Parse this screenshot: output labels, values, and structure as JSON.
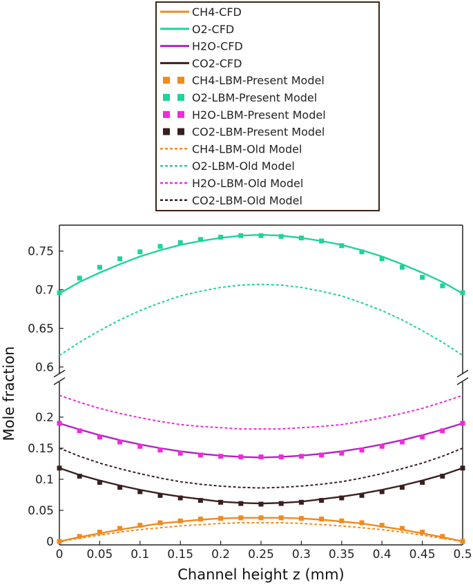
{
  "chart_data": {
    "type": "line",
    "title": "",
    "xlabel": "Channel height z (mm)",
    "ylabel": "Mole fraction",
    "xlim": [
      0,
      0.5
    ],
    "ylim_upper_panel": [
      0.595,
      0.78
    ],
    "ylim_lower_panel": [
      0,
      0.24
    ],
    "axis_break": "between 0.6 and 0.2 on the y axis",
    "x_ticks": [
      "0",
      "0.05",
      "0.1",
      "0.15",
      "0.2",
      "0.25",
      "0.3",
      "0.35",
      "0.4",
      "0.45",
      "0.5"
    ],
    "y_ticks_upper": [
      "0.6",
      "0.65",
      "0.7",
      "0.75"
    ],
    "y_ticks_lower": [
      "0",
      "0.05",
      "0.1",
      "0.15",
      "0.2"
    ],
    "grid": false,
    "legend_position": "top-center, above the plot",
    "x": [
      0,
      0.025,
      0.05,
      0.075,
      0.1,
      0.125,
      0.15,
      0.175,
      0.2,
      0.225,
      0.25,
      0.275,
      0.3,
      0.325,
      0.35,
      0.375,
      0.4,
      0.425,
      0.45,
      0.475,
      0.5
    ],
    "series": [
      {
        "name": "CH4-CFD",
        "species": "CH4",
        "model": "cfd",
        "color": "#f28a1c",
        "values": [
          0.0,
          0.007,
          0.013,
          0.019,
          0.024,
          0.029,
          0.032,
          0.035,
          0.037,
          0.038,
          0.038,
          0.038,
          0.037,
          0.035,
          0.032,
          0.029,
          0.024,
          0.019,
          0.013,
          0.007,
          0.0
        ]
      },
      {
        "name": "O2-CFD",
        "species": "O2",
        "model": "cfd",
        "color": "#1fd39b",
        "values": [
          0.695,
          0.71,
          0.722,
          0.733,
          0.743,
          0.751,
          0.758,
          0.763,
          0.767,
          0.77,
          0.771,
          0.77,
          0.767,
          0.763,
          0.758,
          0.751,
          0.743,
          0.733,
          0.722,
          0.71,
          0.695
        ]
      },
      {
        "name": "H2O-CFD",
        "species": "H2O",
        "model": "cfd",
        "color": "#b41fc6",
        "values": [
          0.19,
          0.18,
          0.171,
          0.163,
          0.156,
          0.15,
          0.145,
          0.141,
          0.138,
          0.136,
          0.135,
          0.136,
          0.138,
          0.141,
          0.145,
          0.15,
          0.156,
          0.163,
          0.171,
          0.18,
          0.19
        ]
      },
      {
        "name": "CO2-CFD",
        "species": "CO2",
        "model": "cfd",
        "color": "#3a1f1f",
        "values": [
          0.118,
          0.107,
          0.098,
          0.09,
          0.083,
          0.077,
          0.072,
          0.068,
          0.064,
          0.062,
          0.061,
          0.062,
          0.064,
          0.068,
          0.072,
          0.077,
          0.083,
          0.09,
          0.098,
          0.107,
          0.118
        ]
      },
      {
        "name": "CH4-LBM-Present Model",
        "species": "CH4",
        "model": "present",
        "color": "#f28a1c",
        "values": [
          0.0,
          0.008,
          0.015,
          0.021,
          0.026,
          0.03,
          0.033,
          0.036,
          0.037,
          0.038,
          0.038,
          0.038,
          0.037,
          0.036,
          0.033,
          0.03,
          0.026,
          0.021,
          0.015,
          0.008,
          0.0
        ]
      },
      {
        "name": "O2-LBM-Present Model",
        "species": "O2",
        "model": "present",
        "color": "#1fd39b",
        "values": [
          0.696,
          0.715,
          0.729,
          0.74,
          0.749,
          0.756,
          0.761,
          0.765,
          0.768,
          0.77,
          0.77,
          0.769,
          0.767,
          0.763,
          0.757,
          0.749,
          0.74,
          0.729,
          0.716,
          0.705,
          0.696
        ]
      },
      {
        "name": "H2O-LBM-Present Model",
        "species": "H2O",
        "model": "present",
        "color": "#f02ad8",
        "values": [
          0.19,
          0.178,
          0.168,
          0.16,
          0.153,
          0.147,
          0.142,
          0.139,
          0.137,
          0.136,
          0.136,
          0.136,
          0.137,
          0.139,
          0.142,
          0.147,
          0.153,
          0.16,
          0.168,
          0.178,
          0.19
        ]
      },
      {
        "name": "CO2-LBM-Present Model",
        "species": "CO2",
        "model": "present",
        "color": "#3a1f1f",
        "values": [
          0.118,
          0.105,
          0.095,
          0.087,
          0.08,
          0.074,
          0.07,
          0.066,
          0.063,
          0.061,
          0.06,
          0.061,
          0.063,
          0.066,
          0.07,
          0.074,
          0.08,
          0.087,
          0.095,
          0.105,
          0.118
        ]
      },
      {
        "name": "CH4-LBM-Old Model",
        "species": "CH4",
        "model": "old",
        "color": "#f28a1c",
        "values": [
          0.0,
          0.005,
          0.01,
          0.015,
          0.019,
          0.022,
          0.025,
          0.027,
          0.029,
          0.03,
          0.03,
          0.03,
          0.029,
          0.027,
          0.025,
          0.022,
          0.019,
          0.015,
          0.01,
          0.005,
          0.0
        ]
      },
      {
        "name": "O2-LBM-Old Model",
        "species": "O2",
        "model": "old",
        "color": "#1fd39b",
        "values": [
          0.615,
          0.632,
          0.647,
          0.661,
          0.673,
          0.683,
          0.692,
          0.698,
          0.703,
          0.706,
          0.707,
          0.706,
          0.703,
          0.698,
          0.692,
          0.683,
          0.673,
          0.661,
          0.647,
          0.632,
          0.615
        ]
      },
      {
        "name": "H2O-LBM-Old Model",
        "species": "H2O",
        "model": "old",
        "color": "#f02ad8",
        "values": [
          0.235,
          0.224,
          0.214,
          0.206,
          0.199,
          0.193,
          0.188,
          0.185,
          0.183,
          0.181,
          0.181,
          0.181,
          0.183,
          0.185,
          0.188,
          0.193,
          0.199,
          0.206,
          0.214,
          0.224,
          0.235
        ]
      },
      {
        "name": "CO2-LBM-Old Model",
        "species": "CO2",
        "model": "old",
        "color": "#3a1f1f",
        "values": [
          0.15,
          0.137,
          0.126,
          0.117,
          0.109,
          0.102,
          0.096,
          0.092,
          0.089,
          0.087,
          0.086,
          0.087,
          0.089,
          0.092,
          0.096,
          0.102,
          0.109,
          0.117,
          0.126,
          0.137,
          0.15
        ]
      }
    ]
  }
}
